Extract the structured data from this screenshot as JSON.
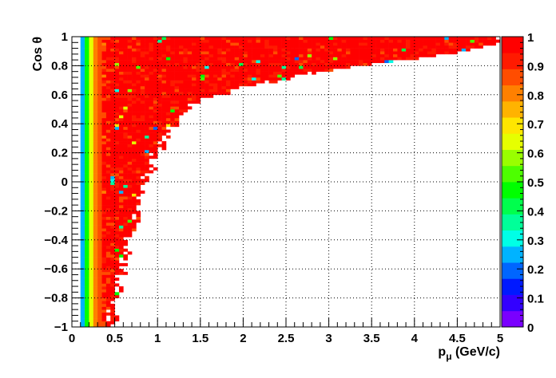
{
  "chart_data": {
    "type": "heatmap",
    "title": "",
    "xlabel": "p",
    "xlabel_sub": "μ",
    "xlabel_unit": " (GeV/c)",
    "ylabel": "Cos θ",
    "xlim": [
      0,
      5
    ],
    "ylim": [
      -1,
      1
    ],
    "zlim": [
      0,
      1
    ],
    "grid": true,
    "x_ticks": [
      "0",
      "0.5",
      "1",
      "1.5",
      "2",
      "2.5",
      "3",
      "3.5",
      "4",
      "4.5",
      "5"
    ],
    "y_ticks": [
      "−1",
      "−0.8",
      "−0.6",
      "−0.4",
      "−0.2",
      "0",
      "0.2",
      "0.4",
      "0.6",
      "0.8",
      "1"
    ],
    "z_ticks": [
      "0",
      "0.1",
      "0.2",
      "0.3",
      "0.4",
      "0.5",
      "0.6",
      "0.7",
      "0.8",
      "0.9",
      "1"
    ],
    "bins": {
      "nx": 100,
      "ny": 100,
      "x_range": [
        0,
        5
      ],
      "y_range": [
        -1,
        1
      ]
    },
    "palette": [
      "#7a00ff",
      "#3300ff",
      "#0019ff",
      "#0066ff",
      "#00b3ff",
      "#00ffe6",
      "#00ff99",
      "#00ff4d",
      "#00ff00",
      "#4dff00",
      "#99ff00",
      "#e6ff00",
      "#ffe600",
      "#ffb300",
      "#ff8000",
      "#ff4d00",
      "#ff1a00",
      "#ff0000"
    ],
    "structure": {
      "efficiency_ramp": [
        {
          "p": 0.1,
          "eff": 0.1
        },
        {
          "p": 0.15,
          "eff": 0.35
        },
        {
          "p": 0.2,
          "eff": 0.55
        },
        {
          "p": 0.25,
          "eff": 0.75
        },
        {
          "p": 0.3,
          "eff": 0.85
        },
        {
          "p": 0.4,
          "eff": 0.92
        },
        {
          "p": 0.6,
          "eff": 0.95
        }
      ],
      "max_momentum_boundary": [
        {
          "cos": -1.0,
          "p_max": 0.45
        },
        {
          "cos": -0.8,
          "p_max": 0.5
        },
        {
          "cos": -0.6,
          "p_max": 0.58
        },
        {
          "cos": -0.4,
          "p_max": 0.65
        },
        {
          "cos": -0.2,
          "p_max": 0.8
        },
        {
          "cos": 0.0,
          "p_max": 0.85
        },
        {
          "cos": 0.2,
          "p_max": 1.0
        },
        {
          "cos": 0.4,
          "p_max": 1.2
        },
        {
          "cos": 0.55,
          "p_max": 1.45
        },
        {
          "cos": 0.65,
          "p_max": 2.0
        },
        {
          "cos": 0.75,
          "p_max": 2.8
        },
        {
          "cos": 0.8,
          "p_max": 3.3
        },
        {
          "cos": 0.86,
          "p_max": 4.2
        },
        {
          "cos": 0.9,
          "p_max": 4.6
        },
        {
          "cos": 0.95,
          "p_max": 5.0
        },
        {
          "cos": 1.0,
          "p_max": 5.0
        }
      ]
    }
  }
}
